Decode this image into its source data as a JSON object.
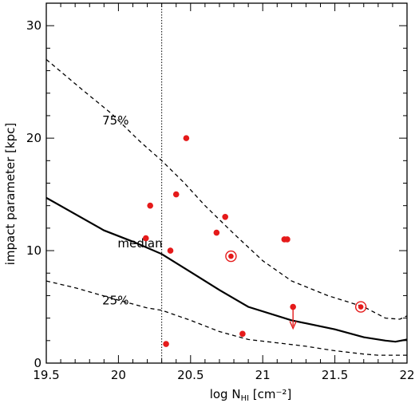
{
  "chart_data": {
    "type": "scatter",
    "xlim": [
      19.5,
      22
    ],
    "ylim": [
      0,
      32
    ],
    "xticks": [
      19.5,
      20,
      20.5,
      21,
      21.5,
      22
    ],
    "xtick_labels": [
      "19.5",
      "20",
      "20.5",
      "21",
      "21.5",
      "22"
    ],
    "yticks": [
      0,
      10,
      20,
      30
    ],
    "ytick_labels": [
      "0",
      "10",
      "20",
      "30"
    ],
    "xlabel": {
      "prefix": "log N",
      "sub": "HI",
      "suffix": " [cm⁻²]"
    },
    "ylabel": "impact parameter [kpc]",
    "grid": false,
    "vline": {
      "x": 20.3,
      "style": "dotted"
    },
    "curves": [
      {
        "label": "median",
        "style": "solid",
        "label_at": [
          20.15,
          10.3
        ],
        "x": [
          19.5,
          19.9,
          20.1,
          20.3,
          20.5,
          20.7,
          20.9,
          21.2,
          21.5,
          21.7,
          21.85,
          21.92,
          22.0
        ],
        "y": [
          14.7,
          11.8,
          10.8,
          9.7,
          8.1,
          6.5,
          5.0,
          3.8,
          3.0,
          2.3,
          2.0,
          1.9,
          2.1
        ]
      },
      {
        "label": "75%",
        "style": "dashed",
        "label_at": [
          19.98,
          21.2
        ],
        "x": [
          19.5,
          19.75,
          19.95,
          20.15,
          20.3,
          20.45,
          20.6,
          20.8,
          21.0,
          21.2,
          21.45,
          21.7,
          21.85,
          21.95,
          22.0
        ],
        "y": [
          27.0,
          24.3,
          22.2,
          19.7,
          18.0,
          16.1,
          14.0,
          11.5,
          9.1,
          7.3,
          6.0,
          5.0,
          4.0,
          3.9,
          4.2
        ]
      },
      {
        "label": "25%",
        "style": "dashed",
        "label_at": [
          19.98,
          5.2
        ],
        "x": [
          19.5,
          19.7,
          20.0,
          20.2,
          20.3,
          20.5,
          20.7,
          20.9,
          21.1,
          21.3,
          21.5,
          21.7,
          21.8,
          22.0
        ],
        "y": [
          7.3,
          6.7,
          5.6,
          4.9,
          4.7,
          3.8,
          2.8,
          2.1,
          1.8,
          1.5,
          1.1,
          0.8,
          0.7,
          0.7
        ]
      }
    ],
    "points": [
      {
        "x": 20.47,
        "y": 20.0,
        "marker": "dot"
      },
      {
        "x": 20.22,
        "y": 14.0,
        "marker": "dot"
      },
      {
        "x": 20.4,
        "y": 15.0,
        "marker": "dot"
      },
      {
        "x": 20.19,
        "y": 11.1,
        "marker": "dot"
      },
      {
        "x": 20.36,
        "y": 10.0,
        "marker": "dot"
      },
      {
        "x": 20.74,
        "y": 13.0,
        "marker": "dot"
      },
      {
        "x": 20.68,
        "y": 11.6,
        "marker": "dot"
      },
      {
        "x": 20.78,
        "y": 9.5,
        "marker": "circled"
      },
      {
        "x": 21.15,
        "y": 11.0,
        "marker": "dot"
      },
      {
        "x": 21.17,
        "y": 11.0,
        "marker": "dot"
      },
      {
        "x": 21.21,
        "y": 5.0,
        "marker": "upper-limit"
      },
      {
        "x": 21.68,
        "y": 5.0,
        "marker": "circled"
      },
      {
        "x": 20.86,
        "y": 2.6,
        "marker": "dot"
      },
      {
        "x": 20.33,
        "y": 1.7,
        "marker": "dot"
      }
    ],
    "point_color": "#e51a1a"
  }
}
